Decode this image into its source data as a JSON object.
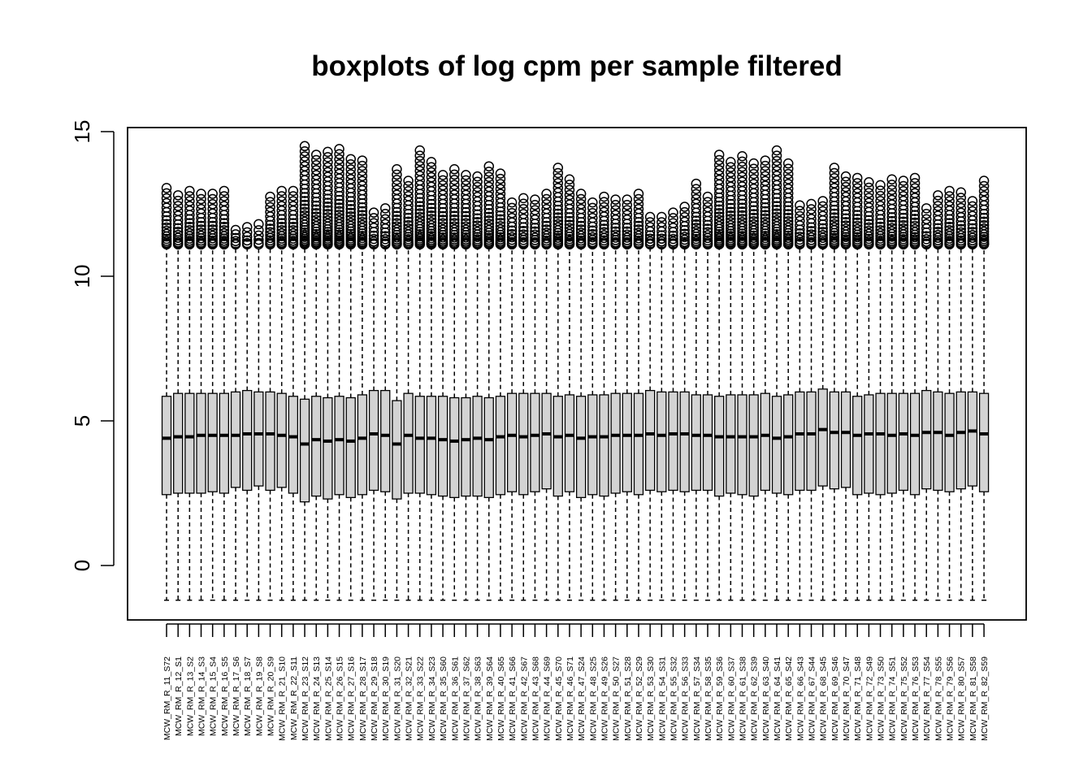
{
  "chart_data": {
    "type": "boxplot",
    "title": "boxplots of log cpm per sample filtered",
    "xlabel": "",
    "ylabel": "",
    "ylim": [
      -1.8,
      15.2
    ],
    "yticks": [
      0,
      5,
      10,
      15
    ],
    "grid": false,
    "legend": "none",
    "box_fill": "#d3d3d3",
    "line_color": "#000000",
    "categories": [
      "MCW_RM_R_11_S72",
      "MCW_RM_R_12_S1",
      "MCW_RM_R_13_S2",
      "MCW_RM_R_14_S3",
      "MCW_RM_R_15_S4",
      "MCW_RM_R_16_S5",
      "MCW_RM_R_17_S6",
      "MCW_RM_R_18_S7",
      "MCW_RM_R_19_S8",
      "MCW_RM_R_20_S9",
      "MCW_RM_R_21_S10",
      "MCW_RM_R_22_S11",
      "MCW_RM_R_23_S12",
      "MCW_RM_R_24_S13",
      "MCW_RM_R_25_S14",
      "MCW_RM_R_26_S15",
      "MCW_RM_R_27_S16",
      "MCW_RM_R_28_S17",
      "MCW_RM_R_29_S18",
      "MCW_RM_R_30_S19",
      "MCW_RM_R_31_S20",
      "MCW_RM_R_32_S21",
      "MCW_RM_R_33_S22",
      "MCW_RM_R_34_S23",
      "MCW_RM_R_35_S60",
      "MCW_RM_R_36_S61",
      "MCW_RM_R_37_S62",
      "MCW_RM_R_38_S63",
      "MCW_RM_R_39_S64",
      "MCW_RM_R_40_S65",
      "MCW_RM_R_41_S66",
      "MCW_RM_R_42_S67",
      "MCW_RM_R_43_S68",
      "MCW_RM_R_44_S69",
      "MCW_RM_R_45_S70",
      "MCW_RM_R_46_S71",
      "MCW_RM_R_47_S24",
      "MCW_RM_R_48_S25",
      "MCW_RM_R_49_S26",
      "MCW_RM_R_50_S27",
      "MCW_RM_R_51_S28",
      "MCW_RM_R_52_S29",
      "MCW_RM_R_53_S30",
      "MCW_RM_R_54_S31",
      "MCW_RM_R_55_S32",
      "MCW_RM_R_56_S33",
      "MCW_RM_R_57_S34",
      "MCW_RM_R_58_S35",
      "MCW_RM_R_59_S36",
      "MCW_RM_R_60_S37",
      "MCW_RM_R_61_S38",
      "MCW_RM_R_62_S39",
      "MCW_RM_R_63_S40",
      "MCW_RM_R_64_S41",
      "MCW_RM_R_65_S42",
      "MCW_RM_R_66_S43",
      "MCW_RM_R_67_S44",
      "MCW_RM_R_68_S45",
      "MCW_RM_R_69_S46",
      "MCW_RM_R_70_S47",
      "MCW_RM_R_71_S48",
      "MCW_RM_R_72_S49",
      "MCW_RM_R_73_S50",
      "MCW_RM_R_74_S51",
      "MCW_RM_R_75_S52",
      "MCW_RM_R_76_S53",
      "MCW_RM_R_77_S54",
      "MCW_RM_R_78_S55",
      "MCW_RM_R_79_S56",
      "MCW_RM_R_80_S57",
      "MCW_RM_R_81_S58",
      "MCW_RM_R_82_S59"
    ],
    "q1": [
      2.45,
      2.5,
      2.5,
      2.5,
      2.55,
      2.5,
      2.7,
      2.6,
      2.75,
      2.6,
      2.7,
      2.5,
      2.2,
      2.4,
      2.3,
      2.45,
      2.35,
      2.45,
      2.6,
      2.55,
      2.3,
      2.5,
      2.5,
      2.45,
      2.4,
      2.35,
      2.4,
      2.4,
      2.35,
      2.45,
      2.55,
      2.45,
      2.55,
      2.65,
      2.4,
      2.55,
      2.35,
      2.45,
      2.4,
      2.5,
      2.55,
      2.45,
      2.6,
      2.55,
      2.6,
      2.55,
      2.6,
      2.6,
      2.4,
      2.5,
      2.45,
      2.4,
      2.6,
      2.5,
      2.45,
      2.6,
      2.6,
      2.75,
      2.65,
      2.7,
      2.45,
      2.5,
      2.45,
      2.5,
      2.6,
      2.45,
      2.65,
      2.6,
      2.55,
      2.65,
      2.75,
      2.55
    ],
    "median": [
      4.4,
      4.45,
      4.45,
      4.5,
      4.5,
      4.5,
      4.5,
      4.55,
      4.55,
      4.55,
      4.5,
      4.45,
      4.2,
      4.35,
      4.3,
      4.35,
      4.3,
      4.4,
      4.55,
      4.5,
      4.2,
      4.5,
      4.4,
      4.4,
      4.35,
      4.3,
      4.35,
      4.4,
      4.35,
      4.45,
      4.5,
      4.45,
      4.5,
      4.55,
      4.45,
      4.5,
      4.4,
      4.45,
      4.45,
      4.5,
      4.5,
      4.5,
      4.55,
      4.5,
      4.55,
      4.55,
      4.5,
      4.5,
      4.45,
      4.45,
      4.45,
      4.45,
      4.5,
      4.4,
      4.45,
      4.55,
      4.55,
      4.7,
      4.6,
      4.6,
      4.5,
      4.55,
      4.55,
      4.5,
      4.55,
      4.5,
      4.6,
      4.6,
      4.5,
      4.6,
      4.65,
      4.55
    ],
    "q3": [
      5.85,
      5.95,
      5.95,
      5.95,
      5.95,
      5.95,
      6.0,
      6.05,
      6.0,
      6.0,
      5.95,
      5.85,
      5.75,
      5.85,
      5.8,
      5.85,
      5.8,
      5.9,
      6.05,
      6.05,
      5.7,
      5.95,
      5.85,
      5.85,
      5.85,
      5.8,
      5.8,
      5.85,
      5.8,
      5.85,
      5.95,
      5.95,
      5.95,
      5.95,
      5.85,
      5.9,
      5.85,
      5.9,
      5.9,
      5.95,
      5.95,
      5.95,
      6.05,
      6.0,
      6.0,
      6.0,
      5.9,
      5.9,
      5.85,
      5.9,
      5.9,
      5.9,
      5.95,
      5.85,
      5.9,
      6.0,
      6.0,
      6.1,
      6.0,
      6.0,
      5.85,
      5.9,
      5.95,
      5.95,
      5.95,
      5.95,
      6.05,
      6.0,
      5.95,
      6.0,
      6.0,
      5.95
    ],
    "whisker_low": -1.2,
    "whisker_high": 11.0,
    "outlier_max": [
      13.05,
      12.8,
      12.95,
      12.85,
      12.85,
      12.95,
      11.6,
      11.7,
      11.8,
      12.75,
      12.95,
      12.95,
      14.5,
      14.2,
      14.3,
      14.4,
      14.05,
      14.0,
      12.2,
      12.35,
      13.7,
      13.3,
      14.35,
      13.95,
      13.5,
      13.7,
      13.5,
      13.45,
      13.8,
      13.55,
      12.55,
      12.7,
      12.65,
      12.85,
      13.75,
      13.35,
      12.85,
      12.55,
      12.75,
      12.65,
      12.65,
      12.85,
      12.05,
      12.05,
      12.2,
      12.4,
      13.2,
      12.75,
      14.2,
      13.95,
      14.15,
      13.9,
      14.0,
      14.35,
      13.9,
      12.45,
      12.5,
      12.6,
      13.75,
      13.45,
      13.4,
      13.25,
      13.15,
      13.35,
      13.3,
      13.4,
      12.35,
      12.8,
      12.95,
      12.9,
      12.6,
      13.3
    ]
  }
}
